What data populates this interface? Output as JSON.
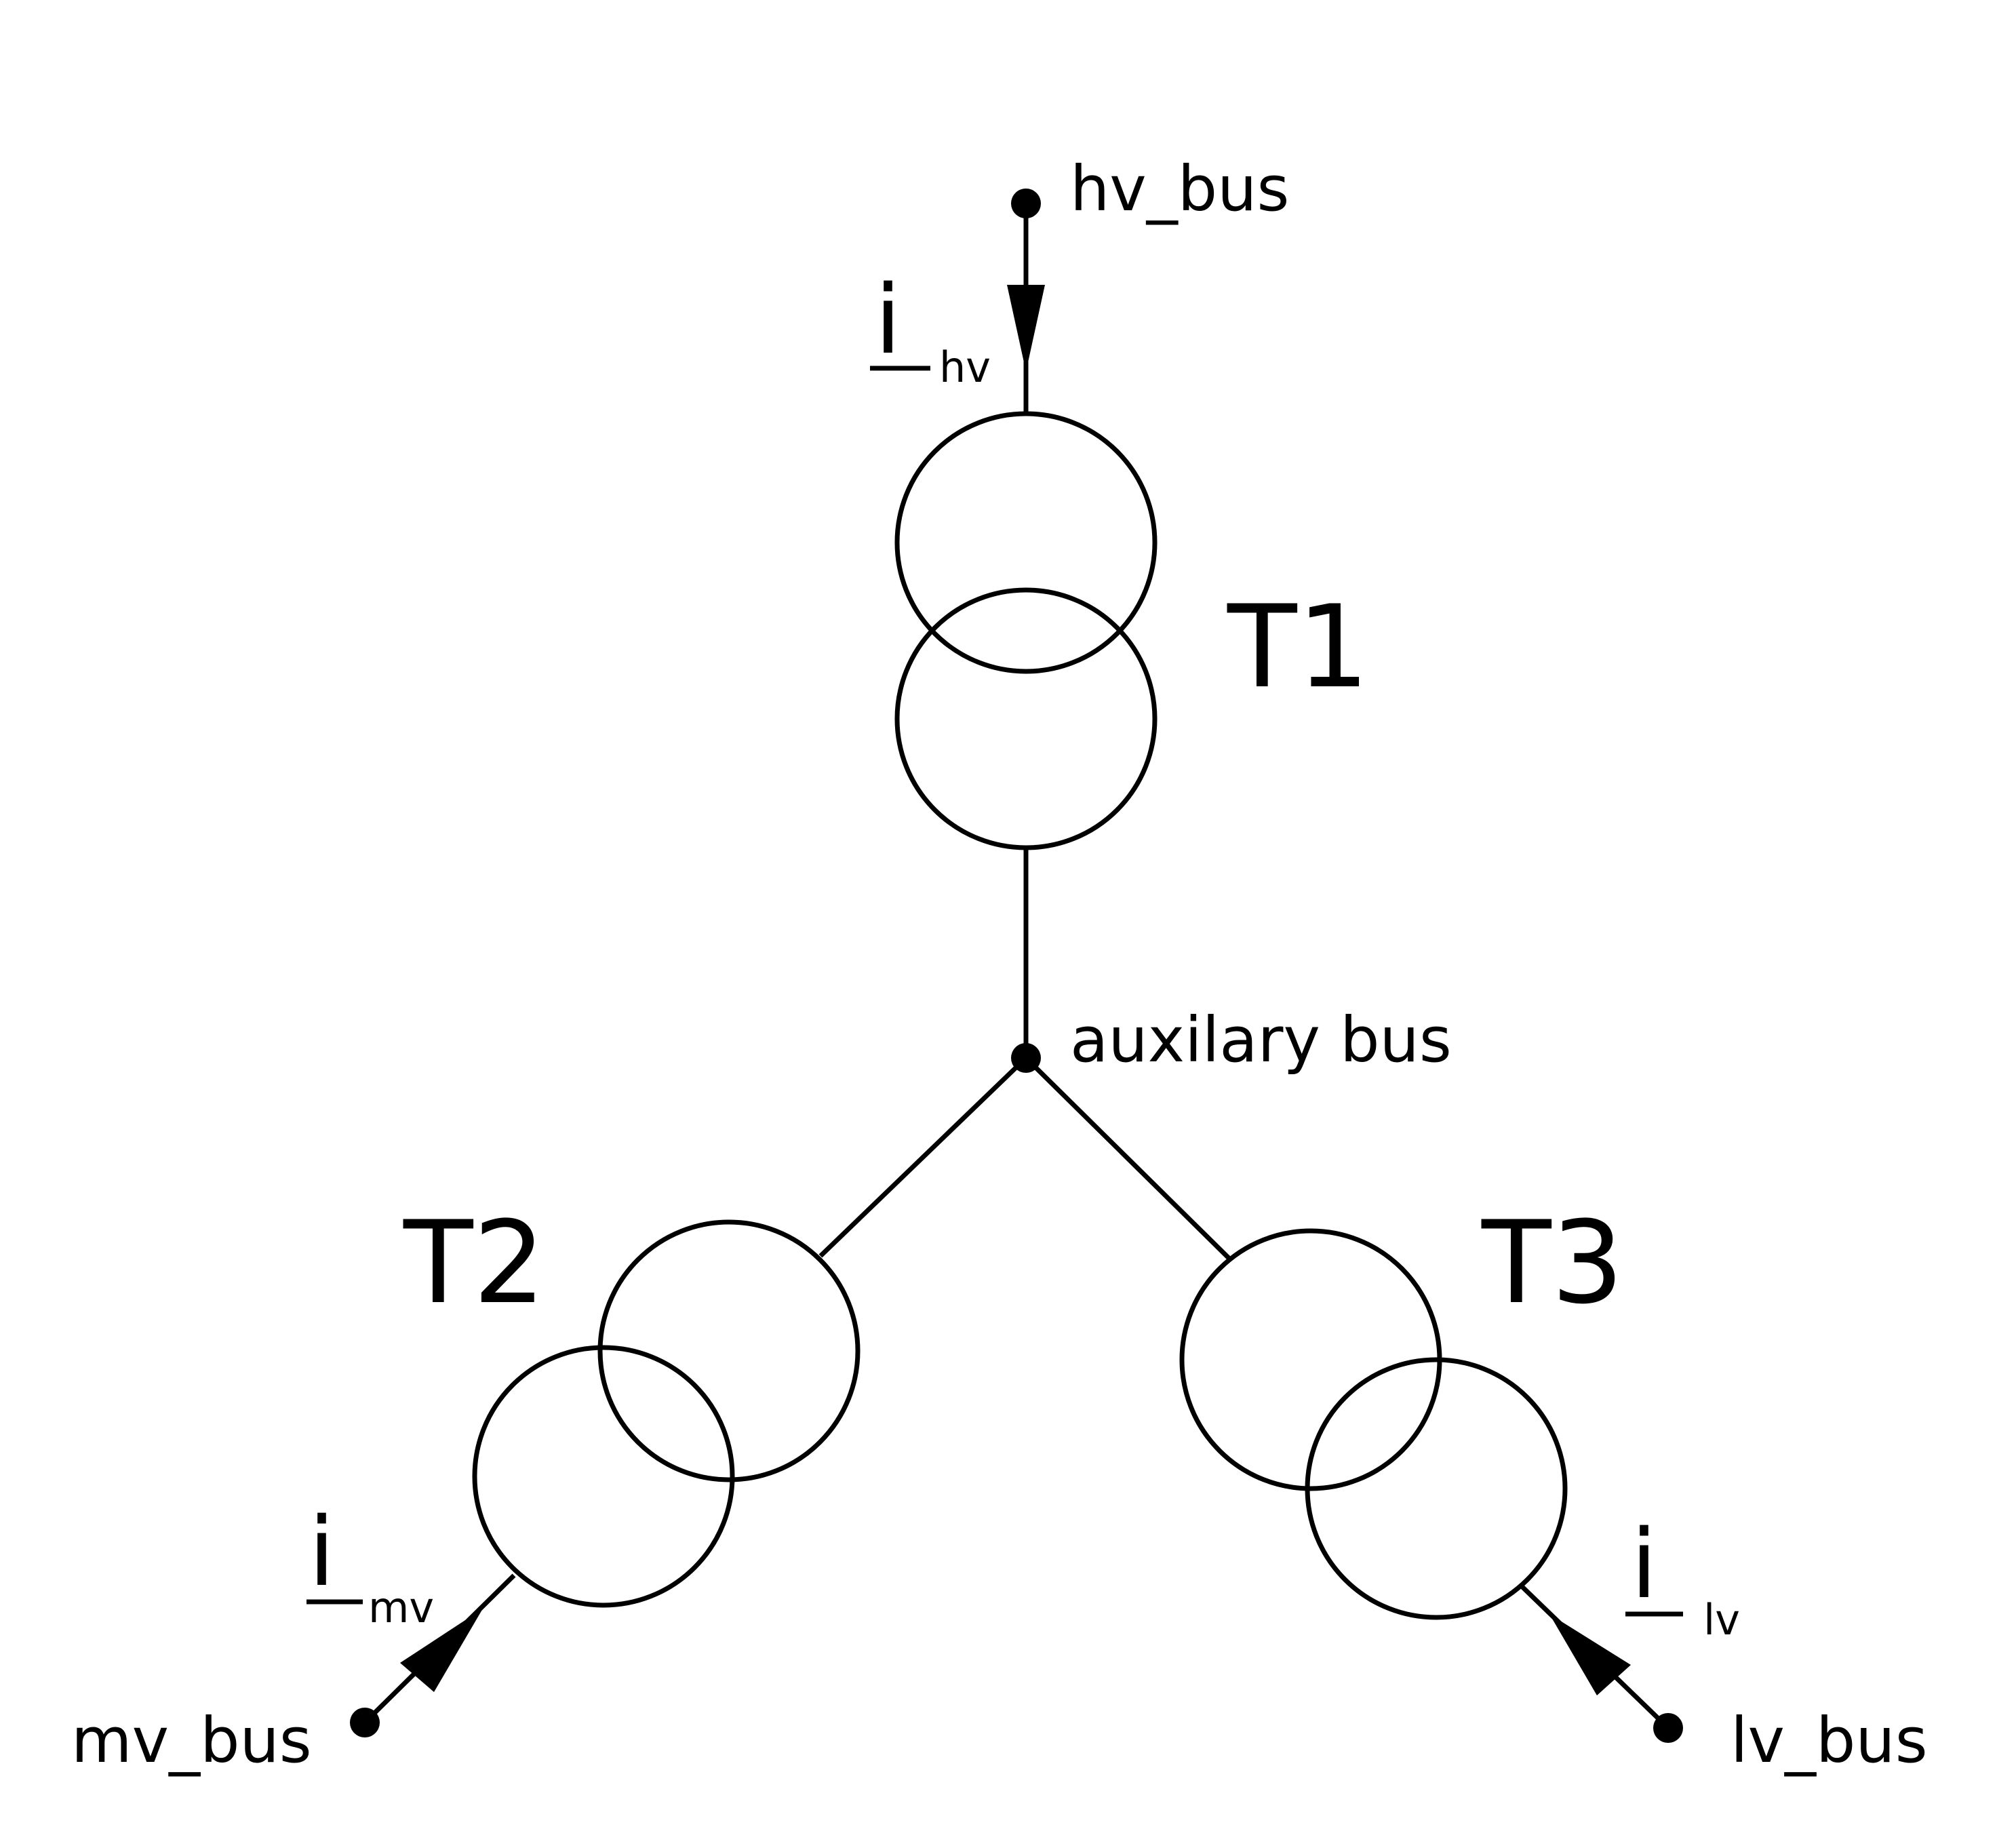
{
  "buses": {
    "hv": "hv_bus",
    "mv": "mv_bus",
    "lv": "lv_bus",
    "aux": "auxilary bus"
  },
  "transformers": {
    "t1": "T1",
    "t2": "T2",
    "t3": "T3"
  },
  "currents": {
    "symbol": "i",
    "hv_sub": "hv",
    "mv_sub": "mv",
    "lv_sub": "lv"
  }
}
